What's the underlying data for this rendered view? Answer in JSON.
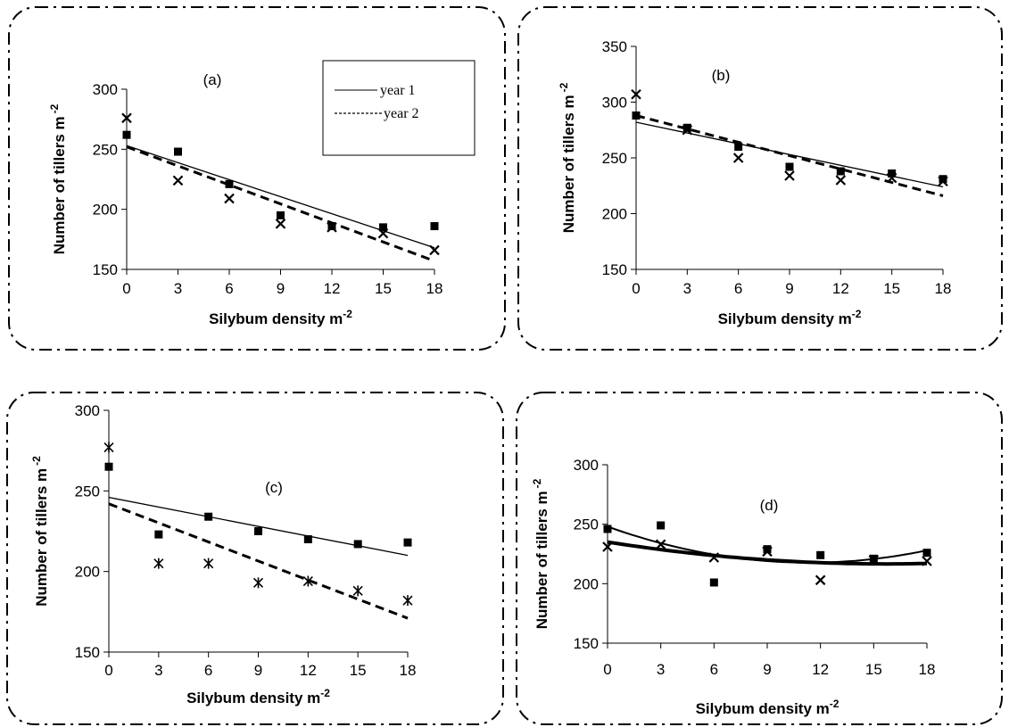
{
  "legend": {
    "year1": "year 1",
    "year2": "year 2"
  },
  "chart_data": [
    {
      "type": "scatter",
      "panel": "(a)",
      "xlabel": "Silybum density m",
      "xlabel_sup": "-2",
      "ylabel": "Number of tillers m",
      "ylabel_sup": "-2",
      "xlim": [
        0,
        18
      ],
      "ylim": [
        150,
        300
      ],
      "xticks": [
        0,
        3,
        6,
        9,
        12,
        15,
        18
      ],
      "yticks": [
        150,
        200,
        250,
        300
      ],
      "x": [
        0,
        3,
        6,
        9,
        12,
        15,
        18
      ],
      "series": [
        {
          "name": "year 1",
          "marker": "square",
          "values": [
            262,
            248,
            221,
            195,
            186,
            185,
            186
          ],
          "trend": {
            "kind": "linear",
            "from": [
              0,
              253
            ],
            "to": [
              18,
              168
            ]
          }
        },
        {
          "name": "year 2",
          "marker": "x",
          "values": [
            276,
            224,
            209,
            188,
            185,
            180,
            166
          ],
          "trend": {
            "kind": "linear",
            "from": [
              0,
              252
            ],
            "to": [
              18,
              157
            ]
          }
        }
      ],
      "legend_placement": "top-right"
    },
    {
      "type": "scatter",
      "panel": "(b)",
      "xlabel": "Silybum density m",
      "xlabel_sup": "-2",
      "ylabel": "Number of tillers m",
      "ylabel_sup": "-2",
      "xlim": [
        0,
        18
      ],
      "ylim": [
        150,
        350
      ],
      "xticks": [
        0,
        3,
        6,
        9,
        12,
        15,
        18
      ],
      "yticks": [
        150,
        200,
        250,
        300,
        350
      ],
      "x": [
        0,
        3,
        6,
        9,
        12,
        15,
        18
      ],
      "series": [
        {
          "name": "year 1",
          "marker": "square",
          "values": [
            288,
            277,
            260,
            242,
            238,
            236,
            231
          ],
          "trend": {
            "kind": "linear",
            "from": [
              0,
              282
            ],
            "to": [
              18,
              224
            ]
          }
        },
        {
          "name": "year 2",
          "marker": "x",
          "values": [
            307,
            275,
            250,
            234,
            230,
            232,
            229
          ],
          "trend": {
            "kind": "linear",
            "from": [
              0,
              288
            ],
            "to": [
              18,
              216
            ]
          }
        }
      ]
    },
    {
      "type": "scatter",
      "panel": "(c)",
      "xlabel": "Silybum density m",
      "xlabel_sup": "-2",
      "ylabel": "Number of tillers m",
      "ylabel_sup": "-2",
      "xlim": [
        0,
        18
      ],
      "ylim": [
        150,
        300
      ],
      "xticks": [
        0,
        3,
        6,
        9,
        12,
        15,
        18
      ],
      "yticks": [
        150,
        200,
        250,
        300
      ],
      "x": [
        0,
        3,
        6,
        9,
        12,
        15,
        18
      ],
      "series": [
        {
          "name": "year 1",
          "marker": "square",
          "values": [
            265,
            223,
            234,
            225,
            220,
            217,
            218
          ],
          "trend": {
            "kind": "linear",
            "from": [
              0,
              246
            ],
            "to": [
              18,
              210
            ]
          }
        },
        {
          "name": "year 2",
          "marker": "asterisk",
          "values": [
            277,
            205,
            205,
            193,
            194,
            188,
            182
          ],
          "trend": {
            "kind": "linear",
            "from": [
              0,
              242
            ],
            "to": [
              18,
              171
            ]
          }
        }
      ]
    },
    {
      "type": "scatter",
      "panel": "(d)",
      "xlabel": "Silybum density m",
      "xlabel_sup": "-2",
      "ylabel": "Number of tillers m",
      "ylabel_sup": "-2",
      "xlim": [
        0,
        18
      ],
      "ylim": [
        150,
        300
      ],
      "xticks": [
        0,
        3,
        6,
        9,
        12,
        15,
        18
      ],
      "yticks": [
        150,
        200,
        250,
        300
      ],
      "x": [
        0,
        3,
        6,
        9,
        12,
        15,
        18
      ],
      "series": [
        {
          "name": "year 1",
          "marker": "square",
          "values": [
            246,
            249,
            201,
            229,
            224,
            221,
            226
          ],
          "trend": {
            "kind": "quadratic",
            "points": [
              [
                0,
                248
              ],
              [
                9,
                219
              ],
              [
                18,
                228
              ]
            ]
          }
        },
        {
          "name": "year 2",
          "marker": "x",
          "values": [
            231,
            233,
            222,
            227,
            203,
            220,
            219
          ],
          "trend": {
            "kind": "quadratic",
            "points": [
              [
                0,
                235
              ],
              [
                9,
                220
              ],
              [
                18,
                217
              ]
            ]
          }
        }
      ]
    }
  ]
}
